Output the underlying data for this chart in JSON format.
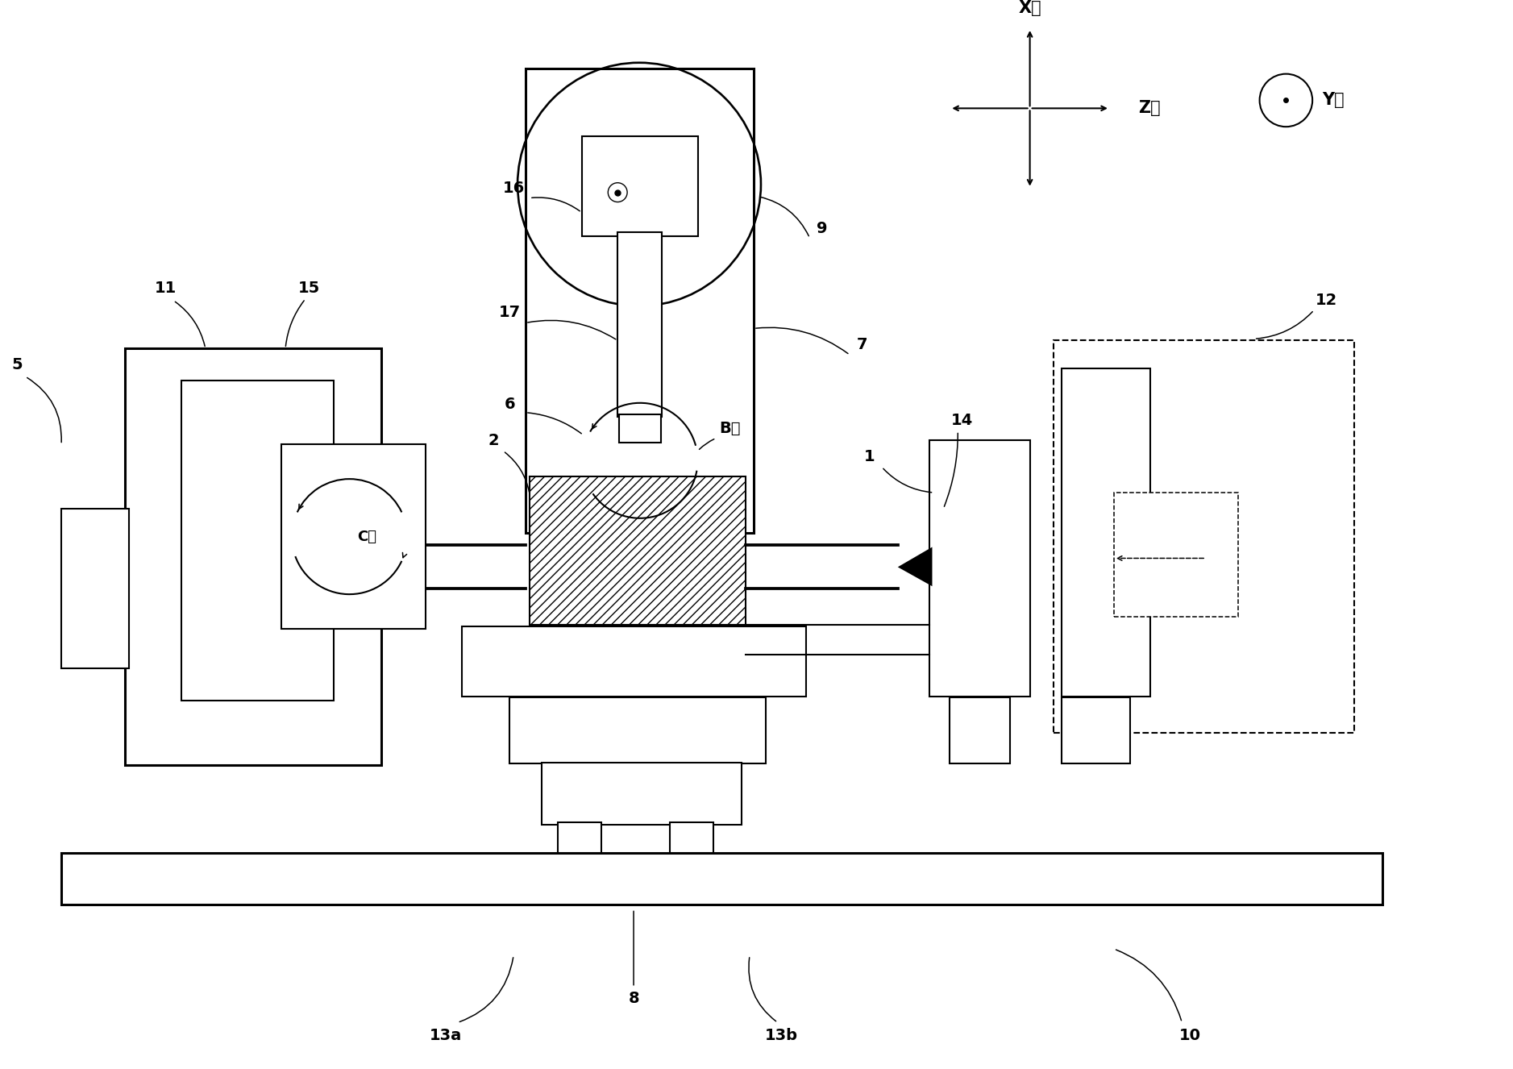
{
  "bg": "#ffffff",
  "fw": 18.77,
  "fh": 13.26,
  "lw_thick": 2.2,
  "lw_med": 1.5,
  "lw_thin": 1.1,
  "labels": {
    "X": "X轴",
    "Y": "Y轴",
    "Z": "Z轴",
    "B": "B轴",
    "C": "C轴",
    "1": "1",
    "2": "2",
    "5": "5",
    "6": "6",
    "7": "7",
    "8": "8",
    "9": "9",
    "10": "10",
    "11": "11",
    "12": "12",
    "13a": "13a",
    "13b": "13b",
    "14": "14",
    "15": "15",
    "16": "16",
    "17": "17"
  },
  "fs": 14
}
